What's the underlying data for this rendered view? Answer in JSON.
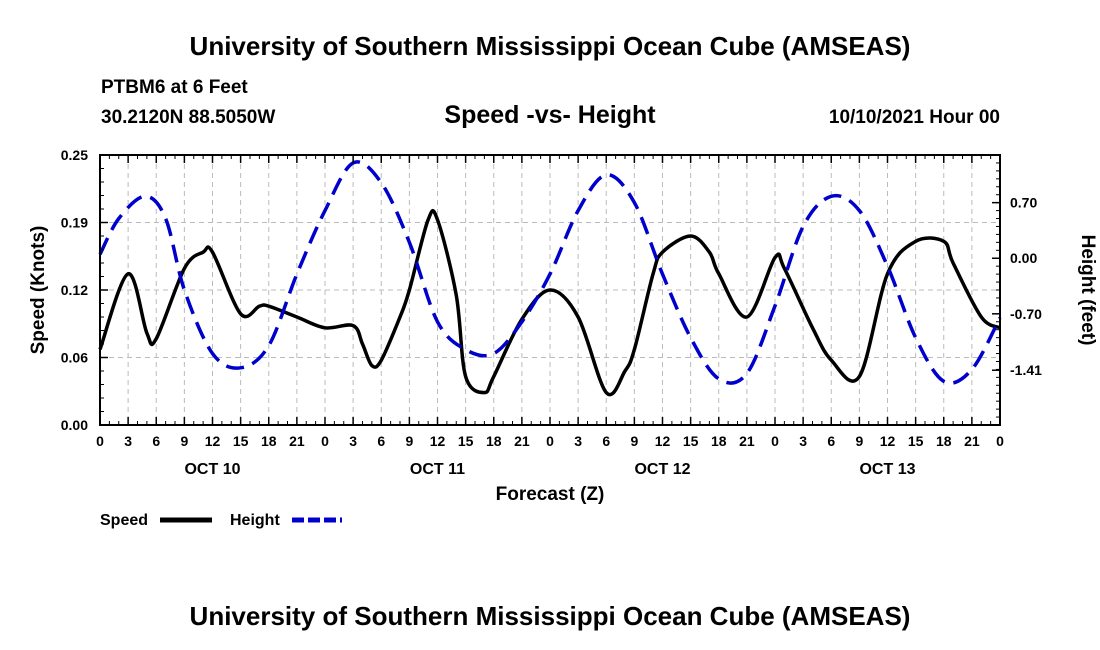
{
  "header": {
    "title": "University of Southern Mississippi Ocean Cube (AMSEAS)",
    "station": "PTBM6 at 6 Feet",
    "coords": "30.2120N  88.5050W",
    "datetime": "10/10/2021 Hour 00"
  },
  "footer": {
    "title": "University of Southern Mississippi Ocean Cube (AMSEAS)"
  },
  "colors": {
    "speed": "#000000",
    "height": "#0000cc",
    "grid": "#bbbbbb"
  },
  "chart_data": {
    "type": "line",
    "title": "Speed -vs- Height",
    "xlabel": "Forecast (Z)",
    "ylabel": "Speed (Knots)",
    "y2label": "Height (feet)",
    "x_range_hours": [
      0,
      96
    ],
    "ylim": [
      0,
      0.25
    ],
    "y2lim": [
      -2.1,
      1.3
    ],
    "yticks": [
      "0.00",
      "0.06",
      "0.12",
      "0.19",
      "0.25"
    ],
    "y2ticks": [
      {
        "value": 0.7,
        "label": "0.70"
      },
      {
        "value": 0.0,
        "label": "0.00"
      },
      {
        "value": -0.7,
        "label": "-0.70"
      },
      {
        "value": -1.41,
        "label": "-1.41"
      }
    ],
    "xticks": [
      "0",
      "3",
      "6",
      "9",
      "12",
      "15",
      "18",
      "21",
      "0",
      "3",
      "6",
      "9",
      "12",
      "15",
      "18",
      "21",
      "0",
      "3",
      "6",
      "9",
      "12",
      "15",
      "18",
      "21",
      "0",
      "3",
      "6",
      "9",
      "12",
      "15",
      "18",
      "21",
      "0"
    ],
    "day_labels": [
      {
        "label": "OCT 10",
        "hour": 12
      },
      {
        "label": "OCT 11",
        "hour": 36
      },
      {
        "label": "OCT 12",
        "hour": 60
      },
      {
        "label": "OCT 13",
        "hour": 84
      }
    ],
    "series": [
      {
        "name": "Speed",
        "axis": "left",
        "style": "solid",
        "x": [
          0,
          3,
          5,
          6,
          9,
          11,
          12,
          15,
          17,
          18,
          21,
          24,
          27,
          28,
          29,
          30,
          32,
          33,
          35,
          36,
          38,
          39,
          41,
          42,
          45,
          48,
          51,
          54,
          56,
          57,
          59,
          60,
          63,
          65,
          66,
          69,
          72,
          73,
          76,
          78,
          81,
          84,
          87,
          90,
          91,
          94,
          96
        ],
        "y": [
          0.07,
          0.14,
          0.085,
          0.08,
          0.145,
          0.16,
          0.16,
          0.103,
          0.11,
          0.11,
          0.1,
          0.09,
          0.092,
          0.075,
          0.055,
          0.06,
          0.1,
          0.125,
          0.19,
          0.19,
          0.12,
          0.045,
          0.03,
          0.045,
          0.098,
          0.125,
          0.1,
          0.03,
          0.05,
          0.07,
          0.14,
          0.16,
          0.175,
          0.16,
          0.14,
          0.1,
          0.155,
          0.145,
          0.09,
          0.06,
          0.045,
          0.14,
          0.17,
          0.17,
          0.15,
          0.1,
          0.09
        ]
      },
      {
        "name": "Height",
        "axis": "right",
        "style": "dashed",
        "x": [
          0,
          2,
          4.8,
          7,
          9,
          12,
          15,
          18,
          21,
          24,
          27,
          30,
          33,
          36,
          39,
          42,
          45,
          48,
          51,
          54,
          57,
          60,
          63,
          66,
          69,
          72,
          75,
          78,
          81,
          84,
          87,
          90,
          93,
          96
        ],
        "y": [
          0.05,
          0.5,
          0.78,
          0.5,
          -0.4,
          -1.2,
          -1.38,
          -1.1,
          -0.2,
          0.6,
          1.2,
          0.95,
          0.2,
          -0.8,
          -1.15,
          -1.2,
          -0.8,
          -0.2,
          0.6,
          1.05,
          0.7,
          -0.2,
          -1.0,
          -1.52,
          -1.45,
          -0.6,
          0.4,
          0.78,
          0.6,
          -0.1,
          -1.0,
          -1.55,
          -1.4,
          -0.75
        ]
      }
    ],
    "legend": [
      {
        "label": "Speed",
        "style": "solid"
      },
      {
        "label": "Height",
        "style": "dashed"
      }
    ]
  }
}
